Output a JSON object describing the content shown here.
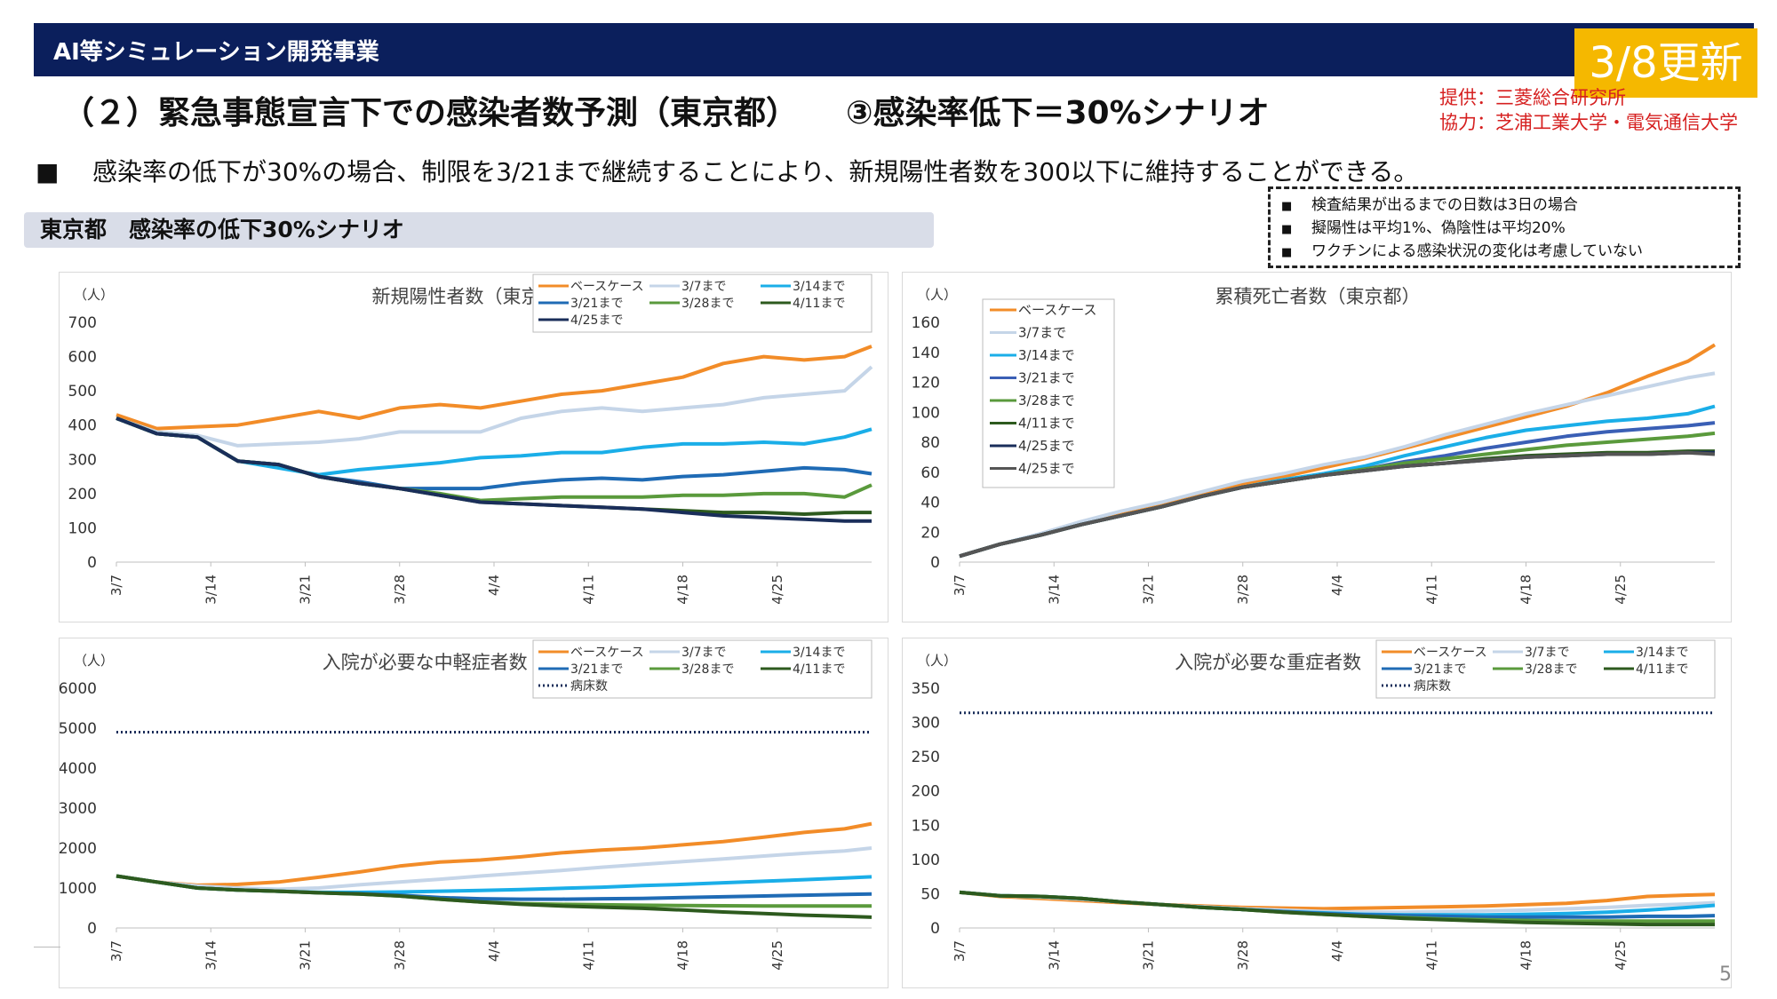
{
  "header": {
    "title": "AI等シミュレーション開発事業",
    "update_badge": "3/8更新"
  },
  "heading": "（２）緊急事態宣言下での感染者数予測（東京都）　　③感染率低下＝30%シナリオ",
  "credits": {
    "provider": "提供：三菱総合研究所",
    "cooperation": "協力：芝浦工業大学・電気通信大学"
  },
  "bullet": {
    "marker": "■",
    "text": "感染率の低下が30%の場合、制限を3/21まで継続することにより、新規陽性者数を300以下に維持することができる。"
  },
  "section_label": "東京都　感染率の低下30%シナリオ",
  "notes": {
    "marker": "■",
    "items": [
      "検査結果が出るまでの日数は3日の場合",
      "擬陽性は平均1%、偽陰性は平均20%",
      "ワクチンによる感染状況の変化は考慮していない"
    ]
  },
  "page_number": "5",
  "chart_data": [
    {
      "type": "line",
      "title": "新規陽性者数（東京都）",
      "ylabel": "（人）",
      "ylim": [
        0,
        700
      ],
      "yticks": [
        0,
        100,
        200,
        300,
        400,
        500,
        600,
        700
      ],
      "xticks": [
        "3/7",
        "3/14",
        "3/21",
        "3/28",
        "4/4",
        "4/11",
        "4/18",
        "4/25"
      ],
      "legend_position": "top-right",
      "x_dates": [
        "3/7",
        "3/10",
        "3/13",
        "3/16",
        "3/19",
        "3/22",
        "3/25",
        "3/28",
        "3/31",
        "4/3",
        "4/6",
        "4/9",
        "4/12",
        "4/15",
        "4/18",
        "4/21",
        "4/24",
        "4/27",
        "4/30",
        "5/2"
      ],
      "series": [
        {
          "name": "ベースケース",
          "color": "#f28c28",
          "values": [
            430,
            390,
            395,
            400,
            420,
            440,
            420,
            450,
            460,
            450,
            470,
            490,
            500,
            520,
            540,
            580,
            600,
            590,
            600,
            630
          ]
        },
        {
          "name": "3/7まで",
          "color": "#c5d5e8",
          "values": [
            420,
            380,
            370,
            340,
            345,
            350,
            360,
            380,
            380,
            380,
            420,
            440,
            450,
            440,
            450,
            460,
            480,
            490,
            500,
            570
          ]
        },
        {
          "name": "3/14まで",
          "color": "#1aaee8",
          "values": [
            420,
            375,
            365,
            295,
            275,
            255,
            270,
            280,
            290,
            305,
            310,
            320,
            320,
            335,
            345,
            345,
            350,
            345,
            365,
            388
          ]
        },
        {
          "name": "3/21まで",
          "color": "#1f6bb5",
          "values": [
            420,
            375,
            365,
            295,
            285,
            250,
            235,
            215,
            215,
            215,
            230,
            240,
            245,
            240,
            250,
            255,
            265,
            275,
            270,
            258
          ]
        },
        {
          "name": "3/28まで",
          "color": "#5a9a3c",
          "values": [
            420,
            375,
            365,
            295,
            285,
            250,
            230,
            215,
            200,
            180,
            185,
            190,
            190,
            190,
            195,
            195,
            200,
            200,
            190,
            225
          ]
        },
        {
          "name": "4/11まで",
          "color": "#2d5a1e",
          "values": [
            420,
            375,
            365,
            295,
            285,
            250,
            230,
            215,
            195,
            175,
            170,
            165,
            160,
            155,
            150,
            145,
            145,
            140,
            145,
            145
          ]
        },
        {
          "name": "4/25まで",
          "color": "#1a2e5a",
          "values": [
            420,
            375,
            365,
            295,
            285,
            250,
            230,
            215,
            195,
            175,
            170,
            165,
            160,
            155,
            145,
            135,
            130,
            125,
            120,
            120
          ]
        }
      ]
    },
    {
      "type": "line",
      "title": "累積死亡者数（東京都）",
      "ylabel": "（人）",
      "ylim": [
        0,
        160
      ],
      "yticks": [
        0,
        20,
        40,
        60,
        80,
        100,
        120,
        140,
        160
      ],
      "xticks": [
        "3/7",
        "3/14",
        "3/21",
        "3/28",
        "4/4",
        "4/11",
        "4/18",
        "4/25"
      ],
      "legend_position": "top-left",
      "x_dates": [
        "3/7",
        "3/10",
        "3/13",
        "3/16",
        "3/19",
        "3/22",
        "3/25",
        "3/28",
        "3/31",
        "4/3",
        "4/6",
        "4/9",
        "4/12",
        "4/15",
        "4/18",
        "4/21",
        "4/24",
        "4/27",
        "4/30",
        "5/2"
      ],
      "series": [
        {
          "name": "ベースケース",
          "color": "#f28c28",
          "values": [
            4,
            12,
            18,
            25,
            33,
            39,
            45,
            52,
            57,
            63,
            69,
            76,
            83,
            90,
            97,
            104,
            113,
            124,
            134,
            145
          ]
        },
        {
          "name": "3/7まで",
          "color": "#c5d5e8",
          "values": [
            4,
            12,
            19,
            27,
            34,
            40,
            47,
            54,
            59,
            65,
            70,
            77,
            85,
            92,
            99,
            105,
            111,
            117,
            123,
            126
          ]
        },
        {
          "name": "3/14まで",
          "color": "#1aaee8",
          "values": [
            4,
            12,
            18,
            25,
            31,
            37,
            44,
            50,
            55,
            59,
            64,
            71,
            77,
            83,
            88,
            91,
            94,
            96,
            99,
            104
          ]
        },
        {
          "name": "3/21まで",
          "color": "#3a5fb5",
          "values": [
            4,
            12,
            18,
            25,
            31,
            37,
            44,
            50,
            54,
            58,
            62,
            67,
            71,
            76,
            80,
            84,
            87,
            89,
            91,
            93
          ]
        },
        {
          "name": "3/28まで",
          "color": "#5a9a3c",
          "values": [
            4,
            12,
            18,
            25,
            31,
            37,
            44,
            50,
            54,
            58,
            62,
            66,
            69,
            72,
            75,
            78,
            80,
            82,
            84,
            86
          ]
        },
        {
          "name": "4/11まで",
          "color": "#2d5a1e",
          "values": [
            4,
            12,
            18,
            25,
            31,
            37,
            44,
            50,
            54,
            58,
            61,
            64,
            66,
            69,
            71,
            72,
            73,
            73,
            74,
            74
          ]
        },
        {
          "name": "4/25まで",
          "color": "#1a2e5a",
          "values": [
            4,
            12,
            18,
            25,
            31,
            37,
            44,
            50,
            54,
            58,
            61,
            64,
            66,
            68,
            70,
            71,
            72,
            72,
            73,
            73
          ]
        },
        {
          "name": "4/25まで",
          "color": "#555555",
          "values": [
            4,
            12,
            18,
            25,
            31,
            37,
            44,
            50,
            54,
            58,
            61,
            64,
            66,
            68,
            70,
            71,
            72,
            72,
            73,
            72
          ]
        }
      ]
    },
    {
      "type": "line",
      "title": "入院が必要な中軽症者数 （東京都）",
      "ylabel": "（人）",
      "ylim": [
        0,
        6000
      ],
      "yticks": [
        0,
        1000,
        2000,
        3000,
        4000,
        5000,
        6000
      ],
      "xticks": [
        "3/7",
        "3/14",
        "3/21",
        "3/28",
        "4/4",
        "4/11",
        "4/18",
        "4/25"
      ],
      "legend_position": "top-right",
      "x_dates": [
        "3/7",
        "3/10",
        "3/13",
        "3/16",
        "3/19",
        "3/22",
        "3/25",
        "3/28",
        "3/31",
        "4/3",
        "4/6",
        "4/9",
        "4/12",
        "4/15",
        "4/18",
        "4/21",
        "4/24",
        "4/27",
        "4/30",
        "5/2"
      ],
      "series": [
        {
          "name": "ベースケース",
          "color": "#f28c28",
          "values": [
            1300,
            1150,
            1070,
            1090,
            1150,
            1270,
            1400,
            1550,
            1650,
            1700,
            1780,
            1880,
            1950,
            2000,
            2080,
            2160,
            2270,
            2390,
            2480,
            2610
          ]
        },
        {
          "name": "3/7まで",
          "color": "#c5d5e8",
          "values": [
            1300,
            1150,
            1050,
            1000,
            970,
            1000,
            1080,
            1150,
            1220,
            1300,
            1370,
            1440,
            1520,
            1590,
            1660,
            1730,
            1800,
            1870,
            1930,
            2000
          ]
        },
        {
          "name": "3/14まで",
          "color": "#1aaee8",
          "values": [
            1300,
            1150,
            1000,
            950,
            920,
            890,
            890,
            900,
            920,
            940,
            960,
            990,
            1020,
            1060,
            1090,
            1130,
            1170,
            1210,
            1250,
            1280
          ]
        },
        {
          "name": "3/21まで",
          "color": "#1f6bb5",
          "values": [
            1300,
            1150,
            1000,
            950,
            920,
            880,
            860,
            820,
            760,
            730,
            720,
            720,
            730,
            740,
            760,
            780,
            800,
            820,
            840,
            850
          ]
        },
        {
          "name": "3/28まで",
          "color": "#5a9a3c",
          "values": [
            1300,
            1150,
            1000,
            950,
            920,
            880,
            850,
            800,
            720,
            650,
            610,
            590,
            580,
            570,
            560,
            555,
            550,
            550,
            550,
            550
          ]
        },
        {
          "name": "4/11まで",
          "color": "#2d5a1e",
          "values": [
            1300,
            1150,
            1000,
            950,
            920,
            880,
            850,
            800,
            720,
            650,
            590,
            550,
            520,
            490,
            450,
            400,
            360,
            320,
            290,
            270
          ]
        },
        {
          "name": "病床数",
          "color": "#1a2e5a",
          "dotted": true,
          "values": [
            4900,
            4900,
            4900,
            4900,
            4900,
            4900,
            4900,
            4900,
            4900,
            4900,
            4900,
            4900,
            4900,
            4900,
            4900,
            4900,
            4900,
            4900,
            4900,
            4900
          ]
        }
      ]
    },
    {
      "type": "line",
      "title": "入院が必要な重症者数 （東京都）",
      "ylabel": "（人）",
      "ylim": [
        0,
        350
      ],
      "yticks": [
        0,
        50,
        100,
        150,
        200,
        250,
        300,
        350
      ],
      "xticks": [
        "3/7",
        "3/14",
        "3/21",
        "3/28",
        "4/4",
        "4/11",
        "4/18",
        "4/25"
      ],
      "legend_position": "top-right",
      "x_dates": [
        "3/7",
        "3/10",
        "3/13",
        "3/16",
        "3/19",
        "3/22",
        "3/25",
        "3/28",
        "3/31",
        "4/3",
        "4/6",
        "4/9",
        "4/12",
        "4/15",
        "4/18",
        "4/21",
        "4/24",
        "4/27",
        "4/30",
        "5/2"
      ],
      "series": [
        {
          "name": "ベースケース",
          "color": "#f28c28",
          "values": [
            52,
            46,
            43,
            40,
            37,
            34,
            32,
            30,
            29,
            28,
            29,
            30,
            31,
            32,
            34,
            36,
            40,
            46,
            48,
            49
          ]
        },
        {
          "name": "3/7まで",
          "color": "#c5d5e8",
          "values": [
            52,
            47,
            45,
            42,
            38,
            34,
            31,
            28,
            26,
            24,
            23,
            23,
            24,
            25,
            26,
            28,
            30,
            33,
            35,
            37
          ]
        },
        {
          "name": "3/14まで",
          "color": "#1aaee8",
          "values": [
            52,
            47,
            46,
            43,
            38,
            34,
            30,
            27,
            24,
            22,
            20,
            19,
            19,
            19,
            20,
            21,
            23,
            26,
            30,
            33
          ]
        },
        {
          "name": "3/21まで",
          "color": "#1f6bb5",
          "values": [
            52,
            47,
            46,
            43,
            38,
            34,
            30,
            27,
            24,
            21,
            19,
            18,
            17,
            16,
            16,
            16,
            16,
            17,
            17,
            18
          ]
        },
        {
          "name": "3/28まで",
          "color": "#5a9a3c",
          "values": [
            52,
            47,
            46,
            43,
            38,
            34,
            30,
            27,
            23,
            20,
            17,
            15,
            13,
            12,
            11,
            10,
            10,
            10,
            10,
            10
          ]
        },
        {
          "name": "4/11まで",
          "color": "#2d5a1e",
          "values": [
            52,
            47,
            46,
            43,
            38,
            34,
            30,
            27,
            23,
            20,
            17,
            14,
            12,
            10,
            8,
            7,
            6,
            5,
            5,
            5
          ]
        },
        {
          "name": "病床数",
          "color": "#1a2e5a",
          "dotted": true,
          "values": [
            314,
            314,
            314,
            314,
            314,
            314,
            314,
            314,
            314,
            314,
            314,
            314,
            314,
            314,
            314,
            314,
            314,
            314,
            314,
            314
          ]
        }
      ]
    }
  ]
}
